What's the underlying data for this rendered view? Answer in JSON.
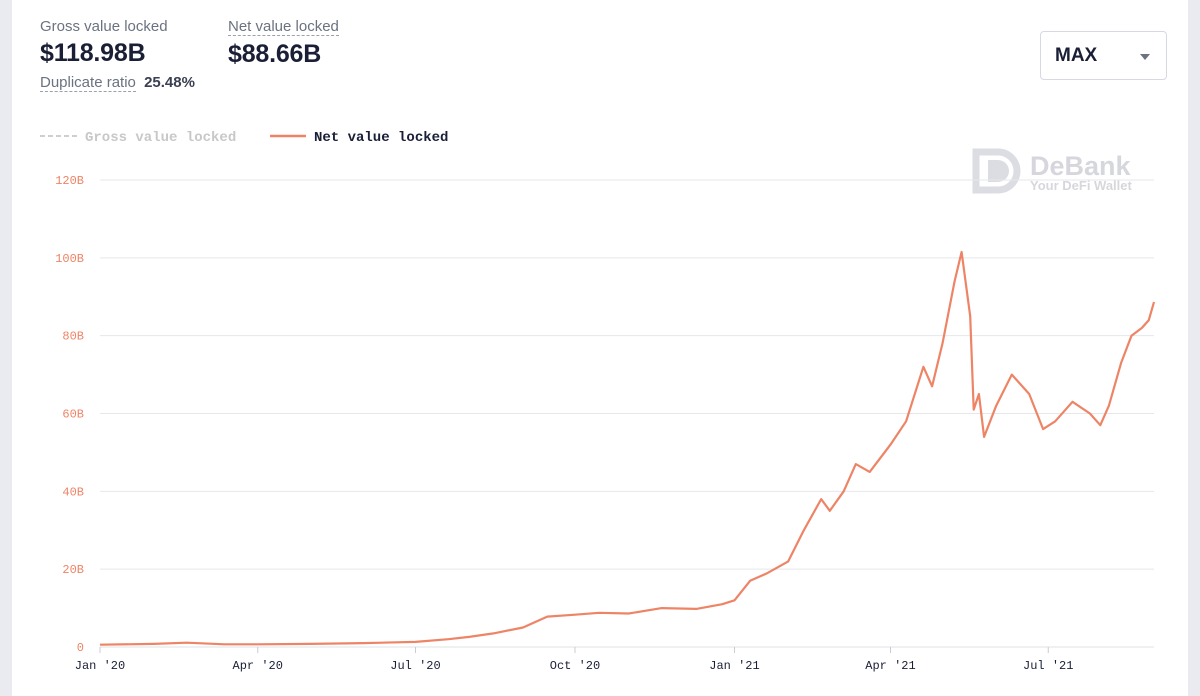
{
  "stats": {
    "gross_label": "Gross value locked",
    "gross_value": "$118.98B",
    "net_label": "Net value locked",
    "net_value": "$88.66B",
    "dup_label": "Duplicate ratio",
    "dup_value": "25.48%"
  },
  "range_select": {
    "value": "MAX"
  },
  "watermark": {
    "brand": "DeBank",
    "tagline": "Your DeFi Wallet"
  },
  "colors": {
    "net_line": "#ee8466",
    "gross_line": "#cfcfcf",
    "axis_text": "#ee8466",
    "grid": "#e5e7eb"
  },
  "chart_data": {
    "type": "line",
    "legend": [
      {
        "name": "Gross value locked",
        "style": "dashed",
        "active": false
      },
      {
        "name": "Net value locked",
        "style": "solid",
        "active": true
      }
    ],
    "ylim": [
      0,
      120
    ],
    "y_ticks": [
      "0",
      "20B",
      "40B",
      "60B",
      "80B",
      "100B",
      "120B"
    ],
    "x_ticks": [
      "Jan '20",
      "Apr '20",
      "Jul '20",
      "Oct '20",
      "Jan '21",
      "Apr '21",
      "Jul '21"
    ],
    "x_tick_dates": [
      "2020-01-01",
      "2020-04-01",
      "2020-07-01",
      "2020-10-01",
      "2021-01-01",
      "2021-04-01",
      "2021-07-01"
    ],
    "x_range": [
      "2020-01-01",
      "2021-08-31"
    ],
    "series": [
      {
        "name": "Net value locked",
        "points": [
          [
            "2020-01-01",
            0.6
          ],
          [
            "2020-02-01",
            0.8
          ],
          [
            "2020-02-20",
            1.1
          ],
          [
            "2020-03-13",
            0.7
          ],
          [
            "2020-04-01",
            0.7
          ],
          [
            "2020-05-01",
            0.8
          ],
          [
            "2020-06-01",
            1.0
          ],
          [
            "2020-07-01",
            1.3
          ],
          [
            "2020-07-20",
            2.0
          ],
          [
            "2020-08-01",
            2.6
          ],
          [
            "2020-08-15",
            3.5
          ],
          [
            "2020-09-01",
            5.0
          ],
          [
            "2020-09-15",
            7.8
          ],
          [
            "2020-10-01",
            8.3
          ],
          [
            "2020-10-15",
            8.8
          ],
          [
            "2020-11-01",
            8.6
          ],
          [
            "2020-11-20",
            10.0
          ],
          [
            "2020-12-10",
            9.8
          ],
          [
            "2020-12-25",
            11.0
          ],
          [
            "2021-01-01",
            12.0
          ],
          [
            "2021-01-10",
            17.0
          ],
          [
            "2021-01-20",
            19.0
          ],
          [
            "2021-02-01",
            22.0
          ],
          [
            "2021-02-10",
            30.0
          ],
          [
            "2021-02-20",
            38.0
          ],
          [
            "2021-02-25",
            35.0
          ],
          [
            "2021-03-05",
            40.0
          ],
          [
            "2021-03-12",
            47.0
          ],
          [
            "2021-03-20",
            45.0
          ],
          [
            "2021-04-01",
            52.0
          ],
          [
            "2021-04-10",
            58.0
          ],
          [
            "2021-04-20",
            72.0
          ],
          [
            "2021-04-25",
            67.0
          ],
          [
            "2021-05-01",
            78.0
          ],
          [
            "2021-05-08",
            94.0
          ],
          [
            "2021-05-12",
            101.5
          ],
          [
            "2021-05-17",
            85.0
          ],
          [
            "2021-05-19",
            61.0
          ],
          [
            "2021-05-22",
            65.0
          ],
          [
            "2021-05-25",
            54.0
          ],
          [
            "2021-06-01",
            62.0
          ],
          [
            "2021-06-10",
            70.0
          ],
          [
            "2021-06-20",
            65.0
          ],
          [
            "2021-06-28",
            56.0
          ],
          [
            "2021-07-05",
            58.0
          ],
          [
            "2021-07-15",
            63.0
          ],
          [
            "2021-07-25",
            60.0
          ],
          [
            "2021-07-31",
            57.0
          ],
          [
            "2021-08-05",
            62.0
          ],
          [
            "2021-08-12",
            73.0
          ],
          [
            "2021-08-18",
            80.0
          ],
          [
            "2021-08-24",
            82.0
          ],
          [
            "2021-08-28",
            84.0
          ],
          [
            "2021-08-31",
            88.66
          ]
        ]
      }
    ]
  }
}
